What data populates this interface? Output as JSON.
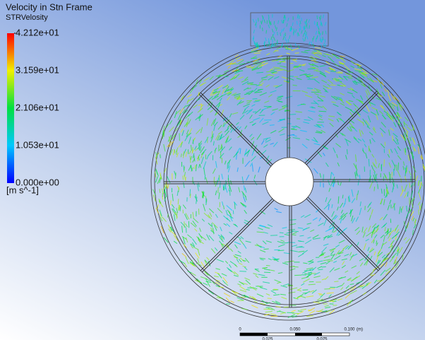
{
  "legend": {
    "title": "Velocity in Stn Frame",
    "variable": "STRVelosity",
    "labels": [
      "4.212e+01",
      "3.159e+01",
      "2.106e+01",
      "1.053e+01",
      "0.000e+00"
    ],
    "unit": "[m s^-1]"
  },
  "scale_bar": {
    "top_labels": [
      "0",
      "0.050",
      "0.100",
      "(m)"
    ],
    "bottom_labels": [
      "0.025",
      "0.075"
    ]
  }
}
